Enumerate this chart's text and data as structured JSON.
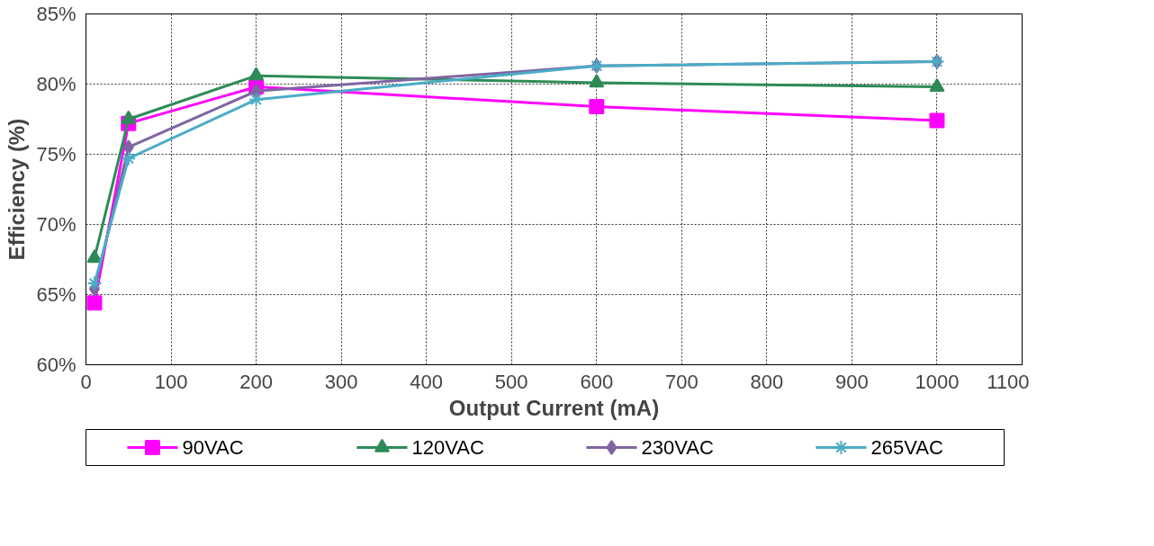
{
  "chart_data": {
    "type": "line",
    "xlabel": "Output Current (mA)",
    "ylabel": "Efficiency (%)",
    "xlim": [
      0,
      1100
    ],
    "xticks": [
      0,
      100,
      200,
      300,
      400,
      500,
      600,
      700,
      800,
      900,
      1000,
      1100
    ],
    "ylim": [
      60,
      85
    ],
    "yticks": [
      {
        "value": 60,
        "label": "60%"
      },
      {
        "value": 65,
        "label": "65%"
      },
      {
        "value": 70,
        "label": "70%"
      },
      {
        "value": 75,
        "label": "75%"
      },
      {
        "value": 80,
        "label": "80%"
      },
      {
        "value": 85,
        "label": "85%"
      }
    ],
    "x": [
      10,
      50,
      200,
      600,
      1000
    ],
    "grid": true,
    "legend": "bottom",
    "series": [
      {
        "name": "90VAC",
        "color": "#ff00ff",
        "marker": "square",
        "values": [
          64.4,
          77.2,
          79.8,
          78.4,
          77.4
        ]
      },
      {
        "name": "120VAC",
        "color": "#2e8b57",
        "marker": "triangle",
        "values": [
          67.6,
          77.5,
          80.6,
          80.1,
          79.8
        ]
      },
      {
        "name": "230VAC",
        "color": "#8064a2",
        "marker": "diamond",
        "values": [
          65.4,
          75.5,
          79.5,
          81.3,
          81.6
        ]
      },
      {
        "name": "265VAC",
        "color": "#4bacc6",
        "marker": "cross",
        "values": [
          65.8,
          74.7,
          78.9,
          81.3,
          81.6
        ]
      }
    ]
  }
}
